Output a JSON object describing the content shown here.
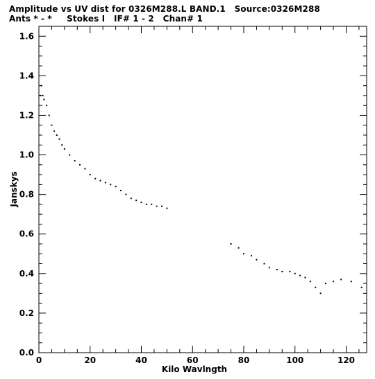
{
  "title": {
    "line1": "Amplitude vs UV dist for 0326M288.L BAND.1   Source:0326M288",
    "line2": "Ants * - *     Stokes I   IF# 1 - 2   Chan# 1"
  },
  "chart_data": {
    "type": "scatter",
    "xlabel": "Kilo Wavlngth",
    "ylabel": "Janskys",
    "xlim": [
      0,
      128
    ],
    "ylim": [
      0,
      1.65
    ],
    "x_ticks": [
      0,
      20,
      40,
      60,
      80,
      100,
      120
    ],
    "x_tick_labels": [
      "0",
      "20",
      "40",
      "60",
      "80",
      "100",
      "120"
    ],
    "y_ticks": [
      0.0,
      0.2,
      0.4,
      0.6,
      0.8,
      1.0,
      1.2,
      1.4,
      1.6
    ],
    "y_tick_labels": [
      "0.0",
      "0.2",
      "0.4",
      "0.6",
      "0.8",
      "1.0",
      "1.2",
      "1.4",
      "1.6"
    ],
    "grid": false,
    "point_color": "#000000",
    "series": [
      {
        "x": [
          0.5,
          1.0,
          1.5,
          2.0,
          3.0,
          4.0,
          5.0,
          6.0,
          7.0,
          8.0,
          9.0,
          10.0,
          12.0,
          14.0,
          16.0,
          18.0,
          20.0,
          22.0,
          24.0,
          26.0,
          28.0,
          30.0,
          32.0,
          34.0,
          36.0,
          38.0,
          40.0,
          42.0,
          44.0,
          46.0,
          48.0,
          50.0,
          75.0,
          78.0,
          80.0,
          83.0,
          85.0,
          88.0,
          90.0,
          93.0,
          95.0,
          98.0,
          100.0,
          102.0,
          104.0,
          106.0,
          108.0,
          110.0,
          112.0,
          115.0,
          118.0,
          122.0,
          126.0
        ],
        "y": [
          1.3,
          1.35,
          1.3,
          1.28,
          1.25,
          1.2,
          1.15,
          1.12,
          1.1,
          1.08,
          1.05,
          1.03,
          1.0,
          0.97,
          0.95,
          0.93,
          0.9,
          0.88,
          0.87,
          0.86,
          0.85,
          0.84,
          0.82,
          0.8,
          0.78,
          0.77,
          0.76,
          0.75,
          0.75,
          0.74,
          0.74,
          0.73,
          0.55,
          0.53,
          0.5,
          0.49,
          0.47,
          0.45,
          0.43,
          0.42,
          0.41,
          0.41,
          0.4,
          0.39,
          0.38,
          0.36,
          0.33,
          0.3,
          0.35,
          0.36,
          0.37,
          0.36,
          0.33
        ]
      }
    ]
  }
}
